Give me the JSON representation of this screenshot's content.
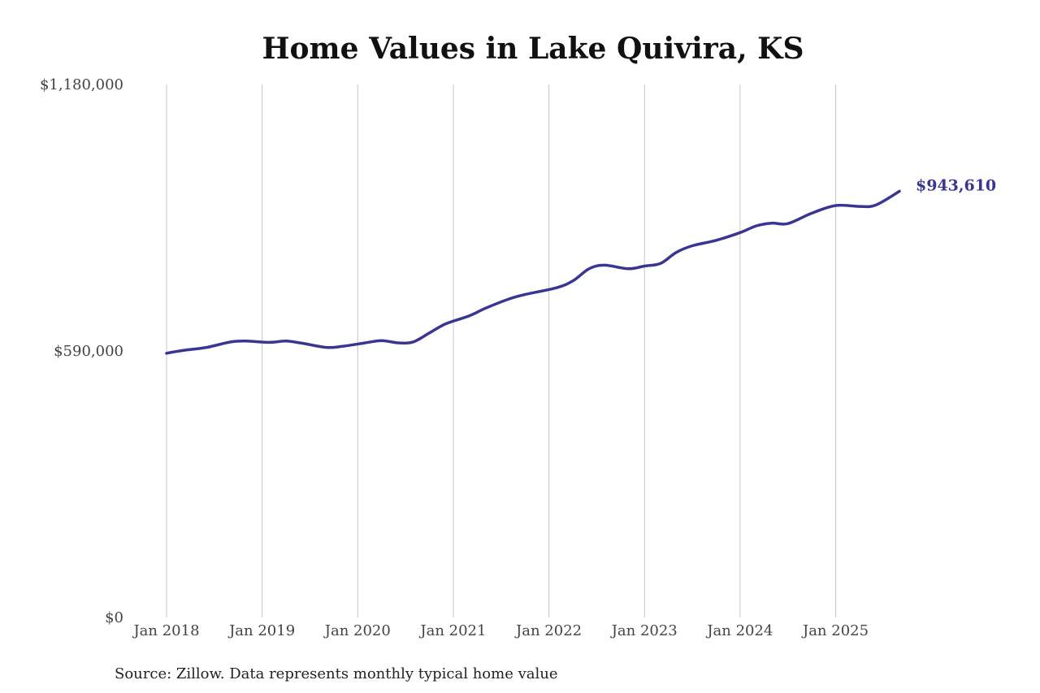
{
  "chart_data": {
    "type": "line",
    "title": "Home Values in Lake Quivira, KS",
    "xlabel": "",
    "ylabel": "",
    "ylim": [
      0,
      1180000
    ],
    "y_ticks": [
      {
        "value": 0,
        "label": "$0"
      },
      {
        "value": 590000,
        "label": "$590,000"
      },
      {
        "value": 1180000,
        "label": "$1,180,000"
      }
    ],
    "x_range": [
      2018.0,
      2025.667
    ],
    "x_ticks": [
      {
        "value": 2018,
        "label": "Jan 2018"
      },
      {
        "value": 2019,
        "label": "Jan 2019"
      },
      {
        "value": 2020,
        "label": "Jan 2020"
      },
      {
        "value": 2021,
        "label": "Jan 2021"
      },
      {
        "value": 2022,
        "label": "Jan 2022"
      },
      {
        "value": 2023,
        "label": "Jan 2023"
      },
      {
        "value": 2024,
        "label": "Jan 2024"
      },
      {
        "value": 2025,
        "label": "Jan 2025"
      }
    ],
    "grid": {
      "vertical": true,
      "horizontal": false
    },
    "series": [
      {
        "color": "#3a3593",
        "end_label": "$943,610",
        "points": [
          {
            "x": 2018.0,
            "y": 585000
          },
          {
            "x": 2018.17,
            "y": 591000
          },
          {
            "x": 2018.42,
            "y": 598000
          },
          {
            "x": 2018.67,
            "y": 610000
          },
          {
            "x": 2018.83,
            "y": 612000
          },
          {
            "x": 2019.08,
            "y": 609000
          },
          {
            "x": 2019.25,
            "y": 612000
          },
          {
            "x": 2019.42,
            "y": 607000
          },
          {
            "x": 2019.67,
            "y": 598000
          },
          {
            "x": 2019.83,
            "y": 600000
          },
          {
            "x": 2020.08,
            "y": 608000
          },
          {
            "x": 2020.25,
            "y": 613000
          },
          {
            "x": 2020.42,
            "y": 608000
          },
          {
            "x": 2020.58,
            "y": 610000
          },
          {
            "x": 2020.75,
            "y": 630000
          },
          {
            "x": 2020.92,
            "y": 650000
          },
          {
            "x": 2021.17,
            "y": 668000
          },
          {
            "x": 2021.33,
            "y": 684000
          },
          {
            "x": 2021.58,
            "y": 705000
          },
          {
            "x": 2021.75,
            "y": 715000
          },
          {
            "x": 2022.08,
            "y": 730000
          },
          {
            "x": 2022.25,
            "y": 745000
          },
          {
            "x": 2022.42,
            "y": 772000
          },
          {
            "x": 2022.58,
            "y": 780000
          },
          {
            "x": 2022.83,
            "y": 772000
          },
          {
            "x": 2023.0,
            "y": 778000
          },
          {
            "x": 2023.17,
            "y": 784000
          },
          {
            "x": 2023.33,
            "y": 808000
          },
          {
            "x": 2023.5,
            "y": 823000
          },
          {
            "x": 2023.75,
            "y": 835000
          },
          {
            "x": 2024.0,
            "y": 852000
          },
          {
            "x": 2024.17,
            "y": 867000
          },
          {
            "x": 2024.33,
            "y": 873000
          },
          {
            "x": 2024.5,
            "y": 872000
          },
          {
            "x": 2024.75,
            "y": 895000
          },
          {
            "x": 2025.0,
            "y": 912000
          },
          {
            "x": 2025.25,
            "y": 910000
          },
          {
            "x": 2025.42,
            "y": 913000
          },
          {
            "x": 2025.667,
            "y": 943610
          }
        ]
      }
    ]
  },
  "footer": {
    "source": "Source: Zillow. Data represents monthly typical home value"
  }
}
